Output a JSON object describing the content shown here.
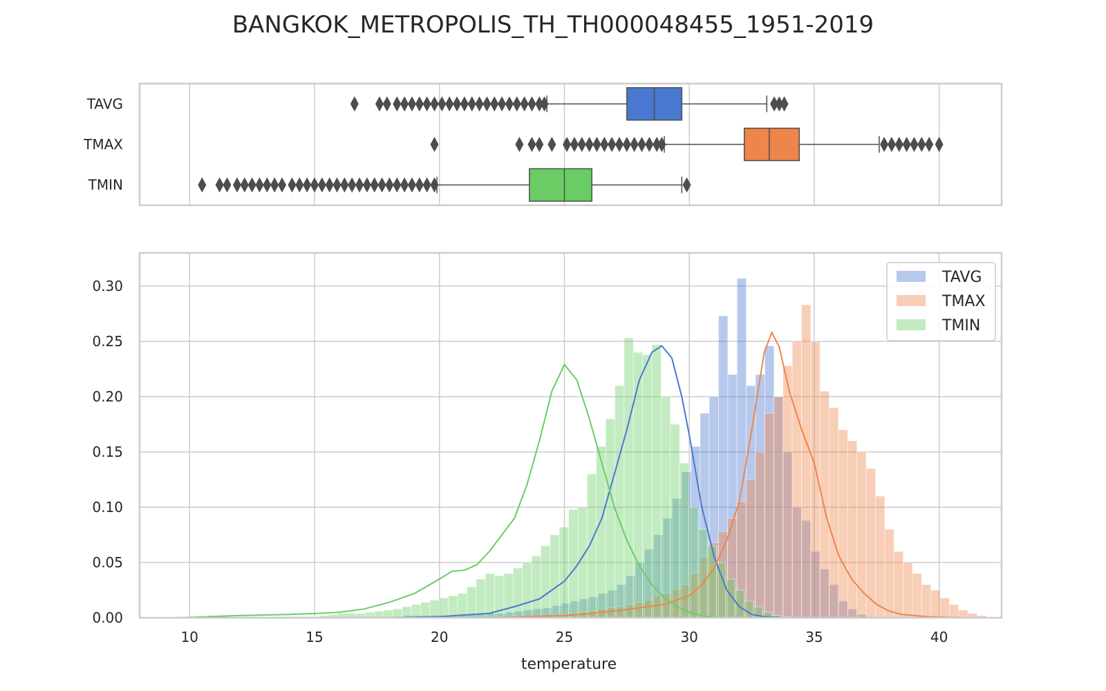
{
  "title": "BANGKOK_METROPOLIS_TH_TH000048455_1951-2019",
  "colors": {
    "TAVG": "#4878d0",
    "TMAX": "#ee854a",
    "TMIN": "#6acc64",
    "grid": "#cccccc",
    "frame": "#cccccc",
    "outlier": "#4d4d4d"
  },
  "chart_data": [
    {
      "type": "box",
      "categories": [
        "TAVG",
        "TMAX",
        "TMIN"
      ],
      "xlim": [
        8,
        42.5
      ],
      "xticks": [
        10,
        15,
        20,
        25,
        30,
        35,
        40
      ],
      "grid": true,
      "series": [
        {
          "name": "TAVG",
          "whisker_low": 24.3,
          "q1": 27.5,
          "median": 28.6,
          "q3": 29.7,
          "whisker_high": 33.1,
          "outliers": [
            16.6,
            17.6,
            17.9,
            18.3,
            18.6,
            18.9,
            19.2,
            19.5,
            19.8,
            20.1,
            20.4,
            20.7,
            21.0,
            21.3,
            21.6,
            21.9,
            22.2,
            22.5,
            22.8,
            23.1,
            23.4,
            23.7,
            24.0,
            24.2,
            33.4,
            33.6,
            33.8
          ]
        },
        {
          "name": "TMAX",
          "whisker_low": 29.0,
          "q1": 32.2,
          "median": 33.2,
          "q3": 34.4,
          "whisker_high": 37.6,
          "outliers": [
            19.8,
            23.2,
            23.7,
            24.0,
            24.5,
            25.1,
            25.4,
            25.7,
            26.0,
            26.3,
            26.6,
            26.9,
            27.2,
            27.5,
            27.8,
            28.1,
            28.4,
            28.7,
            28.9,
            37.8,
            38.1,
            38.4,
            38.7,
            39.0,
            39.3,
            39.6,
            40.0
          ]
        },
        {
          "name": "TMIN",
          "whisker_low": 19.9,
          "q1": 23.6,
          "median": 25.0,
          "q3": 26.1,
          "whisker_high": 29.7,
          "outliers": [
            10.5,
            11.2,
            11.5,
            11.9,
            12.2,
            12.5,
            12.8,
            13.1,
            13.4,
            13.7,
            14.1,
            14.4,
            14.7,
            15.0,
            15.3,
            15.6,
            15.9,
            16.2,
            16.5,
            16.8,
            17.1,
            17.4,
            17.7,
            18.0,
            18.3,
            18.6,
            18.9,
            19.2,
            19.5,
            19.8,
            29.9
          ]
        }
      ]
    },
    {
      "type": "histogram",
      "xlabel": "temperature",
      "xlim": [
        8,
        42.5
      ],
      "ylim": [
        0,
        0.33
      ],
      "xticks": [
        10,
        15,
        20,
        25,
        30,
        35,
        40
      ],
      "yticks": [
        0.0,
        0.05,
        0.1,
        0.15,
        0.2,
        0.25,
        0.3
      ],
      "ytick_labels": [
        "0.00",
        "0.05",
        "0.10",
        "0.15",
        "0.20",
        "0.25",
        "0.30"
      ],
      "grid": true,
      "legend": "top-right",
      "series": [
        {
          "name": "TAVG",
          "bin_start": 16.0,
          "bin_width": 0.37,
          "values": [
            0.001,
            0.001,
            0.001,
            0.001,
            0.001,
            0.001,
            0.001,
            0.002,
            0.002,
            0.002,
            0.002,
            0.002,
            0.002,
            0.003,
            0.003,
            0.003,
            0.004,
            0.004,
            0.005,
            0.006,
            0.007,
            0.008,
            0.009,
            0.011,
            0.013,
            0.015,
            0.017,
            0.019,
            0.022,
            0.025,
            0.03,
            0.038,
            0.05,
            0.062,
            0.075,
            0.09,
            0.108,
            0.132,
            0.155,
            0.185,
            0.2,
            0.273,
            0.22,
            0.307,
            0.21,
            0.22,
            0.246,
            0.2,
            0.15,
            0.1,
            0.088,
            0.06,
            0.044,
            0.03,
            0.015,
            0.008,
            0.003,
            0.001
          ],
          "kde": [
            [
              15.0,
              0.0
            ],
            [
              18.0,
              0.0
            ],
            [
              20.0,
              0.001
            ],
            [
              22.0,
              0.004
            ],
            [
              23.0,
              0.01
            ],
            [
              24.0,
              0.017
            ],
            [
              24.5,
              0.025
            ],
            [
              25.0,
              0.033
            ],
            [
              25.5,
              0.047
            ],
            [
              26.0,
              0.065
            ],
            [
              26.5,
              0.09
            ],
            [
              27.0,
              0.13
            ],
            [
              27.5,
              0.17
            ],
            [
              28.0,
              0.215
            ],
            [
              28.5,
              0.24
            ],
            [
              28.9,
              0.246
            ],
            [
              29.3,
              0.235
            ],
            [
              29.7,
              0.2
            ],
            [
              30.0,
              0.165
            ],
            [
              30.5,
              0.1
            ],
            [
              31.0,
              0.055
            ],
            [
              31.5,
              0.025
            ],
            [
              32.0,
              0.01
            ],
            [
              32.5,
              0.003
            ],
            [
              33.0,
              0.001
            ],
            [
              34.0,
              0.0
            ]
          ]
        },
        {
          "name": "TMAX",
          "bin_start": 24.5,
          "bin_width": 0.37,
          "values": [
            0.002,
            0.003,
            0.004,
            0.005,
            0.006,
            0.008,
            0.009,
            0.01,
            0.012,
            0.014,
            0.016,
            0.02,
            0.022,
            0.026,
            0.03,
            0.04,
            0.055,
            0.068,
            0.078,
            0.09,
            0.105,
            0.125,
            0.15,
            0.185,
            0.2,
            0.228,
            0.25,
            0.283,
            0.25,
            0.205,
            0.19,
            0.17,
            0.16,
            0.15,
            0.135,
            0.11,
            0.08,
            0.06,
            0.05,
            0.04,
            0.03,
            0.025,
            0.018,
            0.012,
            0.007,
            0.004,
            0.002
          ],
          "kde": [
            [
              22.0,
              0.0
            ],
            [
              25.0,
              0.002
            ],
            [
              27.0,
              0.006
            ],
            [
              29.0,
              0.012
            ],
            [
              30.0,
              0.02
            ],
            [
              30.5,
              0.03
            ],
            [
              31.0,
              0.045
            ],
            [
              31.5,
              0.07
            ],
            [
              32.0,
              0.105
            ],
            [
              32.5,
              0.17
            ],
            [
              33.0,
              0.24
            ],
            [
              33.3,
              0.258
            ],
            [
              33.6,
              0.245
            ],
            [
              34.0,
              0.205
            ],
            [
              34.5,
              0.17
            ],
            [
              35.0,
              0.14
            ],
            [
              35.5,
              0.09
            ],
            [
              36.0,
              0.055
            ],
            [
              36.5,
              0.035
            ],
            [
              37.0,
              0.022
            ],
            [
              37.5,
              0.012
            ],
            [
              38.0,
              0.006
            ],
            [
              38.5,
              0.003
            ],
            [
              39.5,
              0.001
            ],
            [
              41.0,
              0.0
            ]
          ]
        },
        {
          "name": "TMIN",
          "bin_start": 10.0,
          "bin_width": 0.37,
          "values": [
            0.001,
            0.001,
            0.001,
            0.001,
            0.001,
            0.001,
            0.001,
            0.001,
            0.001,
            0.001,
            0.001,
            0.001,
            0.001,
            0.001,
            0.002,
            0.003,
            0.004,
            0.004,
            0.004,
            0.005,
            0.006,
            0.007,
            0.008,
            0.01,
            0.012,
            0.014,
            0.016,
            0.018,
            0.02,
            0.022,
            0.028,
            0.035,
            0.04,
            0.038,
            0.04,
            0.045,
            0.05,
            0.056,
            0.065,
            0.075,
            0.082,
            0.098,
            0.1,
            0.13,
            0.155,
            0.18,
            0.21,
            0.253,
            0.24,
            0.238,
            0.247,
            0.2,
            0.175,
            0.14,
            0.1,
            0.08,
            0.065,
            0.05,
            0.035,
            0.025,
            0.015,
            0.01,
            0.005,
            0.002,
            0.001
          ],
          "kde": [
            [
              9.5,
              0.0
            ],
            [
              12.0,
              0.002
            ],
            [
              14.0,
              0.003
            ],
            [
              15.2,
              0.004
            ],
            [
              16.0,
              0.005
            ],
            [
              17.0,
              0.008
            ],
            [
              18.0,
              0.014
            ],
            [
              19.0,
              0.022
            ],
            [
              20.0,
              0.035
            ],
            [
              20.5,
              0.042
            ],
            [
              21.0,
              0.043
            ],
            [
              21.5,
              0.048
            ],
            [
              22.0,
              0.06
            ],
            [
              22.5,
              0.075
            ],
            [
              23.0,
              0.09
            ],
            [
              23.5,
              0.12
            ],
            [
              24.0,
              0.16
            ],
            [
              24.5,
              0.205
            ],
            [
              25.0,
              0.229
            ],
            [
              25.5,
              0.215
            ],
            [
              26.0,
              0.18
            ],
            [
              26.5,
              0.14
            ],
            [
              27.0,
              0.1
            ],
            [
              27.5,
              0.07
            ],
            [
              28.0,
              0.047
            ],
            [
              28.5,
              0.03
            ],
            [
              29.0,
              0.018
            ],
            [
              29.5,
              0.01
            ],
            [
              30.0,
              0.005
            ],
            [
              30.5,
              0.002
            ],
            [
              31.0,
              0.0
            ]
          ]
        }
      ]
    }
  ]
}
